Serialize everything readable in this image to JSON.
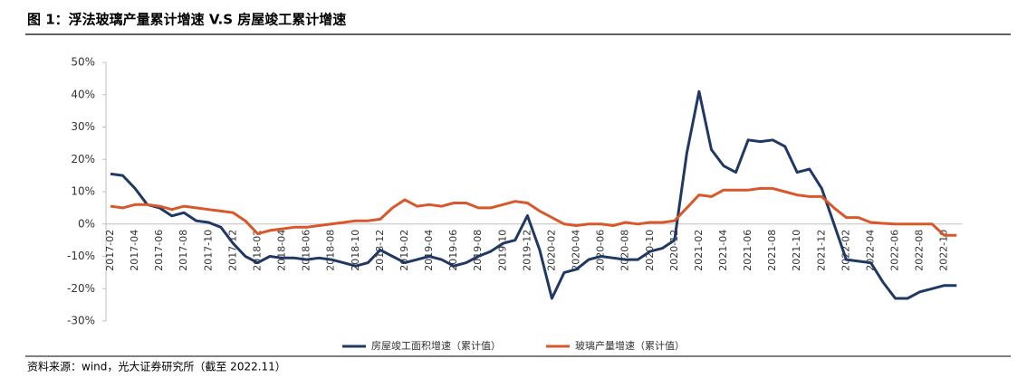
{
  "chart_data": {
    "type": "line",
    "title": "图 1：浮法玻璃产量累计增速 V.S 房屋竣工累计增速",
    "source": "资料来源：wind，光大证券研究所（截至 2022.11）",
    "categories": [
      "2017-02",
      null,
      "2017-04",
      null,
      "2017-06",
      null,
      "2017-08",
      null,
      "2017-10",
      null,
      "2017-12",
      null,
      "2018-02",
      null,
      "2018-04",
      null,
      "2018-06",
      null,
      "2018-08",
      null,
      "2018-10",
      null,
      "2018-12",
      null,
      "2019-02",
      null,
      "2019-04",
      null,
      "2019-06",
      null,
      "2019-08",
      null,
      "2019-10",
      null,
      "2019-12",
      null,
      "2020-02",
      null,
      "2020-04",
      null,
      "2020-06",
      null,
      "2020-08",
      null,
      "2020-10",
      null,
      "2020-12",
      null,
      "2021-02",
      null,
      "2021-04",
      null,
      "2021-06",
      null,
      "2021-08",
      null,
      "2021-10",
      null,
      "2021-12",
      null,
      "2022-02",
      null,
      "2022-04",
      null,
      "2022-06",
      null,
      "2022-08",
      null,
      "2022-10",
      null
    ],
    "series": [
      {
        "name": "房屋竣工面积增速（累计值）",
        "color": "#1f3864",
        "values": [
          15.5,
          15,
          11,
          6,
          5,
          2.5,
          3.5,
          1,
          0.5,
          -1,
          -6,
          -10,
          -12,
          -10,
          -10.5,
          -10.5,
          -11,
          -10.5,
          -11,
          -12,
          -13,
          -12,
          -8,
          -10,
          -12,
          -11,
          -10,
          -11,
          -13,
          -12,
          -10,
          -8.5,
          -6,
          -5,
          2.6,
          -8,
          -23,
          -15,
          -14,
          -11,
          -10,
          -10.5,
          -11,
          -11,
          -8.5,
          -7.5,
          -5,
          22,
          41,
          23,
          18,
          16,
          26,
          25.5,
          26,
          24,
          16,
          17,
          11,
          0,
          -11,
          -11.5,
          -12,
          -18,
          -23,
          -23,
          -21,
          -20,
          -19,
          -19
        ]
      },
      {
        "name": "玻璃产量增速（累计值）",
        "color": "#d9582b",
        "values": [
          5.5,
          5,
          6,
          6,
          5.5,
          4.5,
          5.5,
          5,
          4.5,
          4,
          3.5,
          1,
          -3,
          -2,
          -1.5,
          -1,
          -1,
          -0.5,
          0,
          0.5,
          1,
          1,
          1.5,
          5,
          7.5,
          5.5,
          6,
          5.5,
          6.5,
          6.5,
          5,
          5,
          6,
          7,
          6.5,
          4,
          2,
          0,
          -0.5,
          0,
          0,
          -0.5,
          0.5,
          0,
          0.5,
          0.5,
          1,
          5,
          9,
          8.5,
          10.5,
          10.5,
          10.5,
          11,
          11,
          10,
          9,
          8.5,
          8.5,
          5,
          2,
          2,
          0.5,
          0.2,
          0,
          0,
          0,
          0,
          -3.5,
          -3.5
        ]
      }
    ],
    "ylim": [
      -30,
      50
    ],
    "yticks": [
      {
        "value": -30,
        "label": "-30%"
      },
      {
        "value": -20,
        "label": "-20%"
      },
      {
        "value": -10,
        "label": "-10%"
      },
      {
        "value": 0,
        "label": "0%"
      },
      {
        "value": 10,
        "label": "10%"
      },
      {
        "value": 20,
        "label": "20%"
      },
      {
        "value": 30,
        "label": "30%"
      },
      {
        "value": 40,
        "label": "40%"
      },
      {
        "value": 50,
        "label": "50%"
      }
    ],
    "legend": "bottom"
  }
}
